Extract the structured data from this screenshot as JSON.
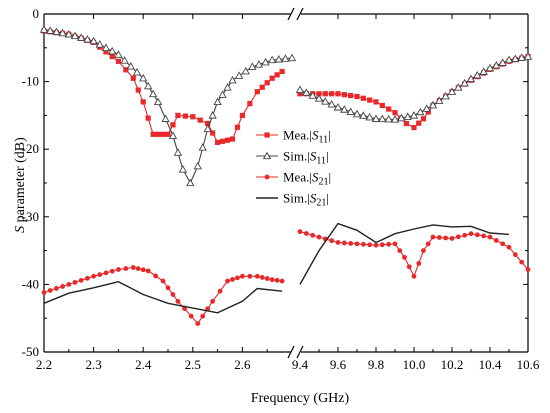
{
  "chart_data": {
    "type": "line",
    "title": "",
    "xlabel": "Frequency (GHz)",
    "ylabel_italic": "S",
    "ylabel_rest": " parameter (dB)",
    "ylim": [
      -50,
      0
    ],
    "yticks": [
      "0",
      "-10",
      "-20",
      "-30",
      "-40",
      "-50"
    ],
    "yticks_values": [
      0,
      -10,
      -20,
      -30,
      -40,
      -50
    ],
    "axis_break": "after 2.7 GHz, before 9.4 GHz",
    "segments": [
      {
        "xlim": [
          2.2,
          2.7
        ],
        "xticks": [
          "2.2",
          "2.3",
          "2.4",
          "2.5",
          "2.6"
        ],
        "xticks_values": [
          2.2,
          2.3,
          2.4,
          2.5,
          2.6
        ]
      },
      {
        "xlim": [
          9.4,
          10.6
        ],
        "xticks": [
          "9.4",
          "9.6",
          "9.8",
          "10.0",
          "10.2",
          "10.4",
          "10.6"
        ],
        "xticks_values": [
          9.4,
          9.6,
          9.8,
          10.0,
          10.2,
          10.4,
          10.6
        ]
      }
    ],
    "legend": [
      {
        "pre": "Mea.|",
        "sym": "S",
        "sub": "11",
        "post": "|",
        "marker": "square",
        "color": "#e8282a"
      },
      {
        "pre": "Sim.|",
        "sym": "S",
        "sub": "11",
        "post": "|",
        "marker": "triangle",
        "color": "#444444"
      },
      {
        "pre": "Mea.|",
        "sym": "S",
        "sub": "21",
        "post": "|",
        "marker": "circle",
        "color": "#e8282a"
      },
      {
        "pre": "Sim.|",
        "sym": "S",
        "sub": "21",
        "post": "|",
        "marker": "none",
        "color": "#222222"
      }
    ],
    "series": [
      {
        "key": "mea_s11",
        "marker": "square",
        "color": "#e8282a",
        "low": [
          [
            2.2,
            -2.5
          ],
          [
            2.25,
            -3.0
          ],
          [
            2.3,
            -4.2
          ],
          [
            2.35,
            -7.0
          ],
          [
            2.38,
            -9.5
          ],
          [
            2.4,
            -13.0
          ],
          [
            2.42,
            -17.8
          ],
          [
            2.45,
            -17.8
          ],
          [
            2.47,
            -15.0
          ],
          [
            2.5,
            -15.2
          ],
          [
            2.53,
            -16.2
          ],
          [
            2.55,
            -19.0
          ],
          [
            2.58,
            -18.5
          ],
          [
            2.6,
            -15.0
          ],
          [
            2.63,
            -11.5
          ],
          [
            2.66,
            -9.5
          ],
          [
            2.68,
            -8.5
          ]
        ],
        "high": [
          [
            9.4,
            -11.8
          ],
          [
            9.5,
            -11.8
          ],
          [
            9.6,
            -11.8
          ],
          [
            9.7,
            -12.2
          ],
          [
            9.8,
            -13.0
          ],
          [
            9.9,
            -14.6
          ],
          [
            9.96,
            -16.2
          ],
          [
            10.0,
            -16.8
          ],
          [
            10.05,
            -15.5
          ],
          [
            10.1,
            -13.5
          ],
          [
            10.2,
            -11.5
          ],
          [
            10.3,
            -9.8
          ],
          [
            10.4,
            -8.2
          ],
          [
            10.5,
            -7.0
          ],
          [
            10.6,
            -6.3
          ]
        ]
      },
      {
        "key": "sim_s11",
        "marker": "triangle",
        "color": "#444444",
        "low": [
          [
            2.2,
            -2.3
          ],
          [
            2.25,
            -3.0
          ],
          [
            2.3,
            -4.0
          ],
          [
            2.35,
            -6.0
          ],
          [
            2.4,
            -9.5
          ],
          [
            2.43,
            -13.0
          ],
          [
            2.46,
            -18.0
          ],
          [
            2.48,
            -23.0
          ],
          [
            2.495,
            -25.0
          ],
          [
            2.51,
            -22.5
          ],
          [
            2.53,
            -17.0
          ],
          [
            2.55,
            -13.0
          ],
          [
            2.58,
            -9.8
          ],
          [
            2.62,
            -7.8
          ],
          [
            2.66,
            -6.8
          ],
          [
            2.7,
            -6.5
          ]
        ],
        "high": [
          [
            9.4,
            -11.2
          ],
          [
            9.5,
            -12.5
          ],
          [
            9.6,
            -13.8
          ],
          [
            9.7,
            -14.8
          ],
          [
            9.8,
            -15.5
          ],
          [
            9.9,
            -15.6
          ],
          [
            10.0,
            -15.0
          ],
          [
            10.1,
            -13.5
          ],
          [
            10.2,
            -11.5
          ],
          [
            10.3,
            -9.6
          ],
          [
            10.4,
            -8.0
          ],
          [
            10.5,
            -6.8
          ],
          [
            10.6,
            -6.3
          ]
        ]
      },
      {
        "key": "mea_s21",
        "marker": "circle",
        "color": "#e8282a",
        "low": [
          [
            2.2,
            -41.2
          ],
          [
            2.25,
            -40.0
          ],
          [
            2.3,
            -38.8
          ],
          [
            2.35,
            -37.8
          ],
          [
            2.38,
            -37.5
          ],
          [
            2.41,
            -38.0
          ],
          [
            2.44,
            -39.5
          ],
          [
            2.47,
            -42.5
          ],
          [
            2.51,
            -45.8
          ],
          [
            2.54,
            -42.5
          ],
          [
            2.57,
            -39.5
          ],
          [
            2.6,
            -38.8
          ],
          [
            2.63,
            -38.8
          ],
          [
            2.66,
            -39.3
          ],
          [
            2.68,
            -39.5
          ]
        ],
        "high": [
          [
            9.4,
            -32.2
          ],
          [
            9.5,
            -33.0
          ],
          [
            9.6,
            -33.8
          ],
          [
            9.7,
            -34.0
          ],
          [
            9.8,
            -34.2
          ],
          [
            9.9,
            -34.0
          ],
          [
            9.95,
            -36.0
          ],
          [
            10.0,
            -38.8
          ],
          [
            10.05,
            -35.0
          ],
          [
            10.1,
            -33.0
          ],
          [
            10.2,
            -33.2
          ],
          [
            10.3,
            -32.5
          ],
          [
            10.4,
            -33.0
          ],
          [
            10.5,
            -34.5
          ],
          [
            10.6,
            -37.8
          ]
        ]
      },
      {
        "key": "sim_s21",
        "marker": "none",
        "color": "#222222",
        "low": [
          [
            2.2,
            -42.8
          ],
          [
            2.25,
            -41.3
          ],
          [
            2.3,
            -40.5
          ],
          [
            2.35,
            -39.6
          ],
          [
            2.4,
            -41.5
          ],
          [
            2.45,
            -42.8
          ],
          [
            2.5,
            -43.5
          ],
          [
            2.55,
            -44.2
          ],
          [
            2.6,
            -42.5
          ],
          [
            2.63,
            -40.6
          ],
          [
            2.68,
            -41.0
          ]
        ],
        "high": [
          [
            9.4,
            -40.0
          ],
          [
            9.5,
            -35.0
          ],
          [
            9.6,
            -31.0
          ],
          [
            9.7,
            -32.0
          ],
          [
            9.8,
            -33.8
          ],
          [
            9.9,
            -32.5
          ],
          [
            10.0,
            -31.8
          ],
          [
            10.1,
            -31.2
          ],
          [
            10.2,
            -31.5
          ],
          [
            10.3,
            -31.4
          ],
          [
            10.4,
            -32.4
          ],
          [
            10.5,
            -32.6
          ]
        ]
      }
    ]
  }
}
